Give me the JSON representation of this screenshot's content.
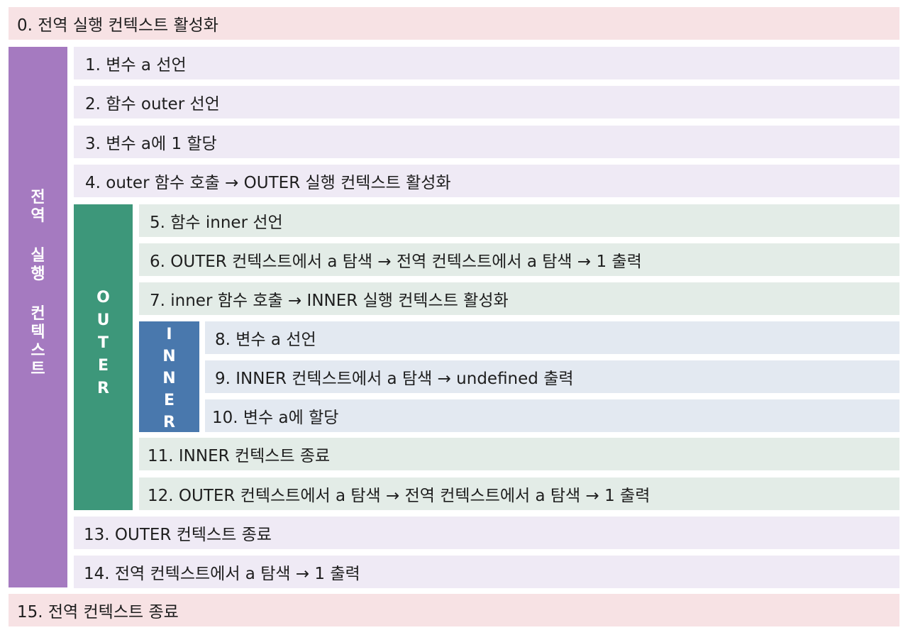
{
  "steps": {
    "s0": "0. 전역 실행 컨텍스트 활성화",
    "s1": "1. 변수 a 선언",
    "s2": "2. 함수 outer 선언",
    "s3": "3. 변수 a에 1 할당",
    "s4": "4. outer 함수 호출 → OUTER 실행 컨텍스트 활성화",
    "s5": "5. 함수 inner 선언",
    "s6": "6. OUTER 컨텍스트에서 a 탐색 → 전역 컨텍스트에서 a 탐색 → 1 출력",
    "s7": "7. inner 함수 호출 → INNER 실행 컨텍스트 활성화",
    "s8": "8. 변수 a 선언",
    "s9": "9. INNER 컨텍스트에서 a 탐색 → undefined 출력",
    "s10": "10. 변수 a에 할당",
    "s11": "11. INNER 컨텍스트 종료",
    "s12": "12. OUTER 컨텍스트에서 a 탐색 → 전역 컨텍스트에서 a 탐색 → 1 출력",
    "s13": "13. OUTER 컨텍스트 종료",
    "s14": "14. 전역 컨텍스트에서 a 탐색 → 1 출력",
    "s15": "15. 전역 컨텍스트 종료"
  },
  "bands": {
    "global": [
      "전",
      "역",
      "실",
      "행",
      "컨",
      "텍",
      "스",
      "트"
    ],
    "outer": [
      "O",
      "U",
      "T",
      "E",
      "R"
    ],
    "inner": [
      "I",
      "N",
      "N",
      "E",
      "R"
    ]
  },
  "colors": {
    "global_band": "#a57ac0",
    "outer_band": "#3d977a",
    "inner_band": "#4978ad",
    "global_row": "#f7e2e4",
    "global_inner_row": "#efeaf5",
    "outer_row": "#e3ece7",
    "inner_row": "#e3e9f1"
  }
}
